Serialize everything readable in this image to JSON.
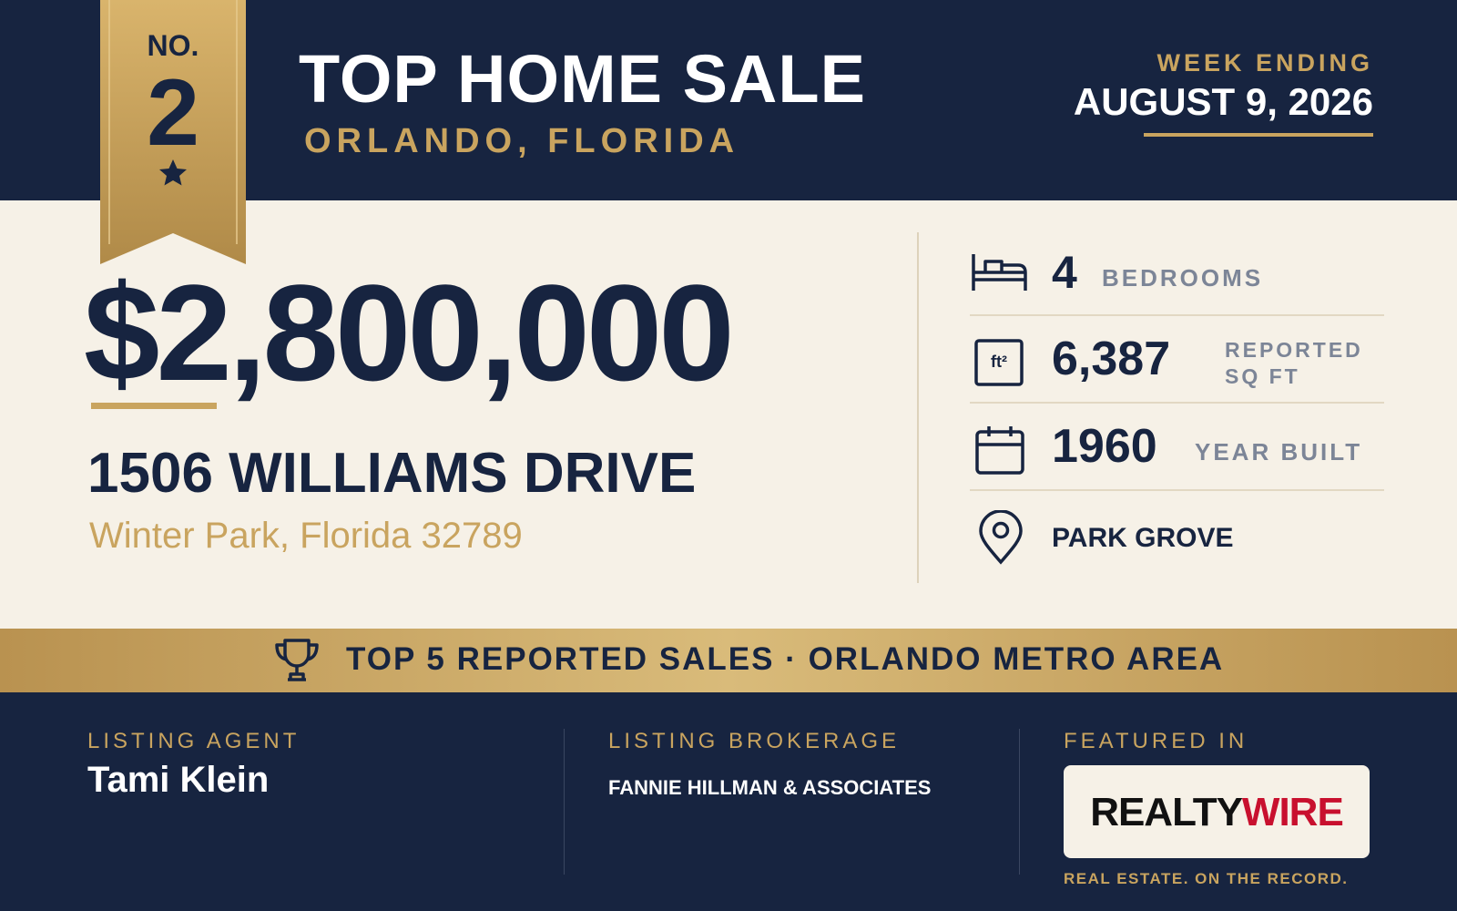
{
  "badge": {
    "prefix": "NO.",
    "rank": "2"
  },
  "header": {
    "title": "TOP HOME SALE",
    "location": "ORLANDO, FLORIDA",
    "week_label": "WEEK ENDING",
    "week_date": "AUGUST 9, 2026"
  },
  "sale": {
    "price": "$2,800,000",
    "street": "1506 WILLIAMS DRIVE",
    "city_line": "Winter Park, Florida 32789"
  },
  "details": [
    {
      "value": "4",
      "label": "BEDROOMS"
    },
    {
      "icon": "ft²",
      "value": "6,387",
      "label": "REPORTED SQ FT"
    },
    {
      "value": "1960",
      "label": "YEAR BUILT"
    },
    {
      "value": "PARK GROVE"
    }
  ],
  "banner": "TOP 5 REPORTED SALES · ORLANDO METRO AREA",
  "footer": {
    "agent_label": "LISTING AGENT",
    "agent": "Tami Klein",
    "brokerage_label": "LISTING BROKERAGE",
    "brokerage": "FANNIE HILLMAN & ASSOCIATES",
    "featured_label": "FEATURED IN",
    "publication": {
      "first": "REALTY",
      "second": "WIRE"
    },
    "tagline": "REAL ESTATE. ON THE RECORD."
  }
}
